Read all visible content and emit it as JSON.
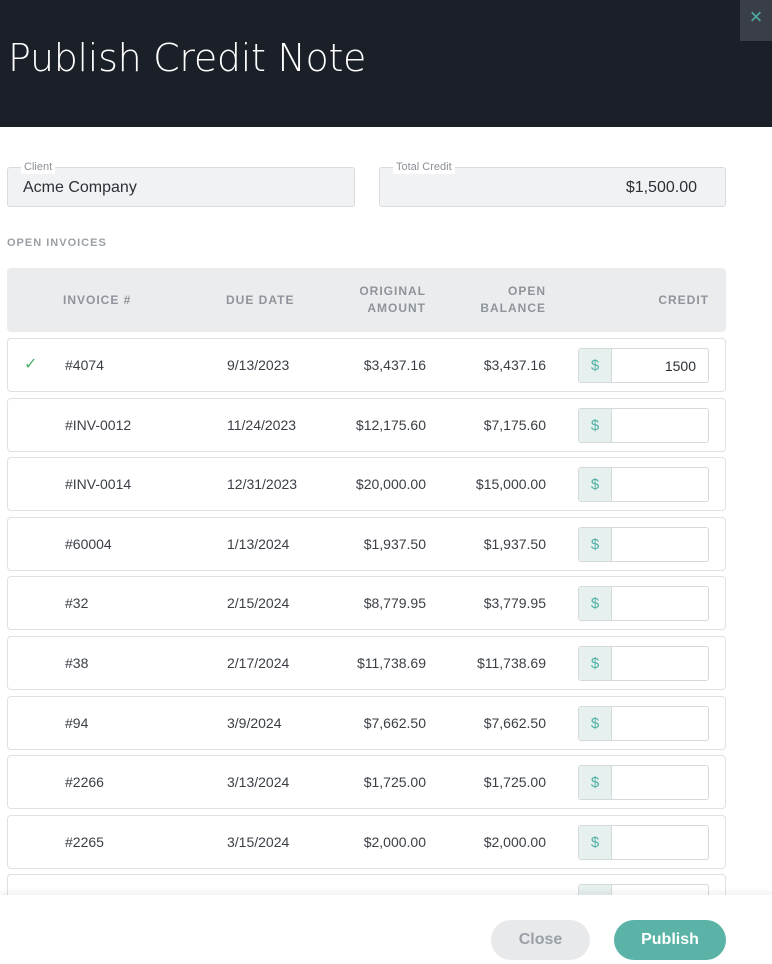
{
  "header": {
    "title": "Publish Credit Note",
    "close_icon": "×"
  },
  "client": {
    "label": "Client",
    "value": "Acme Company"
  },
  "total_credit": {
    "label": "Total Credit",
    "value": "$1,500.00"
  },
  "section_title": "OPEN INVOICES",
  "columns": {
    "invoice": "INVOICE #",
    "due_date": "DUE DATE",
    "original_amount": [
      "ORIGINAL",
      "AMOUNT"
    ],
    "open_balance": [
      "OPEN",
      "BALANCE"
    ],
    "credit": "CREDIT"
  },
  "currency_symbol": "$",
  "check_mark": "✓",
  "rows": [
    {
      "invoice": "#4074",
      "due_date": "9/13/2023",
      "original_amount": "$3,437.16",
      "open_balance": "$3,437.16",
      "credit": "1500",
      "checked": true
    },
    {
      "invoice": "#INV-0012",
      "due_date": "11/24/2023",
      "original_amount": "$12,175.60",
      "open_balance": "$7,175.60",
      "credit": "",
      "checked": false
    },
    {
      "invoice": "#INV-0014",
      "due_date": "12/31/2023",
      "original_amount": "$20,000.00",
      "open_balance": "$15,000.00",
      "credit": "",
      "checked": false
    },
    {
      "invoice": "#60004",
      "due_date": "1/13/2024",
      "original_amount": "$1,937.50",
      "open_balance": "$1,937.50",
      "credit": "",
      "checked": false
    },
    {
      "invoice": "#32",
      "due_date": "2/15/2024",
      "original_amount": "$8,779.95",
      "open_balance": "$3,779.95",
      "credit": "",
      "checked": false
    },
    {
      "invoice": "#38",
      "due_date": "2/17/2024",
      "original_amount": "$11,738.69",
      "open_balance": "$11,738.69",
      "credit": "",
      "checked": false
    },
    {
      "invoice": "#94",
      "due_date": "3/9/2024",
      "original_amount": "$7,662.50",
      "open_balance": "$7,662.50",
      "credit": "",
      "checked": false
    },
    {
      "invoice": "#2266",
      "due_date": "3/13/2024",
      "original_amount": "$1,725.00",
      "open_balance": "$1,725.00",
      "credit": "",
      "checked": false
    },
    {
      "invoice": "#2265",
      "due_date": "3/15/2024",
      "original_amount": "$2,000.00",
      "open_balance": "$2,000.00",
      "credit": "",
      "checked": false
    }
  ],
  "footer": {
    "close_label": "Close",
    "publish_label": "Publish"
  },
  "colors": {
    "header_bg": "#1b1f27",
    "accent": "#5ab3a6",
    "check": "#4fb06d"
  }
}
